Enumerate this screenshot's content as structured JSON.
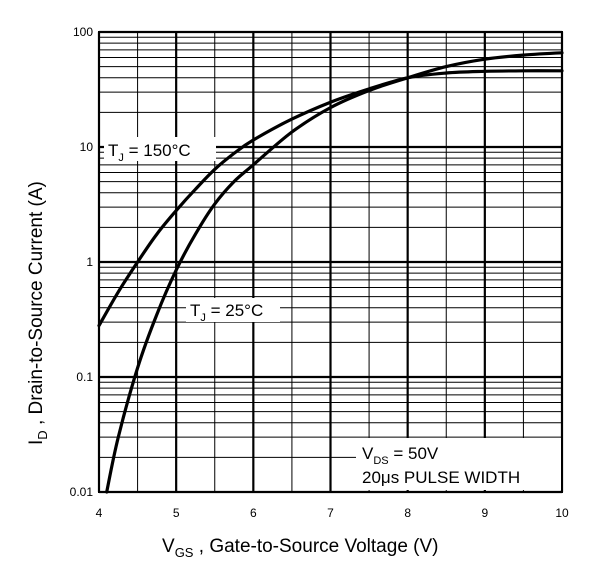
{
  "chart_data": {
    "type": "line",
    "title": "",
    "xlabel": {
      "main": "V",
      "sub": "GS",
      "rest": " , Gate-to-Source Voltage (V)"
    },
    "ylabel": {
      "main": "I",
      "sub": "D",
      "rest": " , Drain-to-Source Current (A)"
    },
    "x_scale": "linear",
    "y_scale": "log",
    "xlim": [
      4,
      10
    ],
    "ylim": [
      0.01,
      100
    ],
    "grid": true,
    "x_ticks": [
      {
        "value": 4,
        "label": "4"
      },
      {
        "value": 5,
        "label": "5"
      },
      {
        "value": 6,
        "label": "6"
      },
      {
        "value": 7,
        "label": "7"
      },
      {
        "value": 8,
        "label": "8"
      },
      {
        "value": 9,
        "label": "9"
      },
      {
        "value": 10,
        "label": "10"
      }
    ],
    "y_ticks": [
      {
        "value": 0.01,
        "label": "0.01"
      },
      {
        "value": 0.1,
        "label": "0.1"
      },
      {
        "value": 1,
        "label": "1"
      },
      {
        "value": 10,
        "label": "10"
      },
      {
        "value": 100,
        "label": "100"
      }
    ],
    "series": [
      {
        "name": "",
        "x": [
          4.0,
          4.25,
          4.5,
          4.75,
          5.0,
          5.25,
          5.5,
          5.75,
          6.0,
          6.5,
          7.0,
          7.5,
          8.0,
          8.5,
          9.0,
          9.5,
          10.0
        ],
        "y": [
          0.28,
          0.55,
          1.0,
          1.75,
          2.8,
          4.3,
          6.4,
          8.8,
          11.5,
          17.5,
          24.5,
          32.0,
          40.0,
          44.0,
          45.5,
          46.0,
          46.0
        ]
      },
      {
        "name": "",
        "x": [
          4.1,
          4.25,
          4.5,
          4.75,
          5.0,
          5.25,
          5.5,
          5.75,
          6.0,
          6.5,
          7.0,
          7.5,
          8.0,
          8.5,
          9.0,
          9.5,
          10.0
        ],
        "y": [
          0.01,
          0.03,
          0.12,
          0.35,
          0.85,
          1.75,
          3.2,
          5.0,
          7.0,
          13.5,
          22.0,
          31.0,
          40.0,
          50.0,
          58.0,
          63.0,
          66.0
        ]
      }
    ],
    "annotations": {
      "tj150": {
        "main": "T",
        "sub": "J",
        "rest": " = 150°C"
      },
      "tj25": {
        "main": "T",
        "sub": "J",
        "rest": " = 25°C"
      },
      "vds": {
        "main": "V",
        "sub": "DS",
        "rest": " = 50V"
      },
      "pulse": "20μs PULSE WIDTH"
    }
  }
}
